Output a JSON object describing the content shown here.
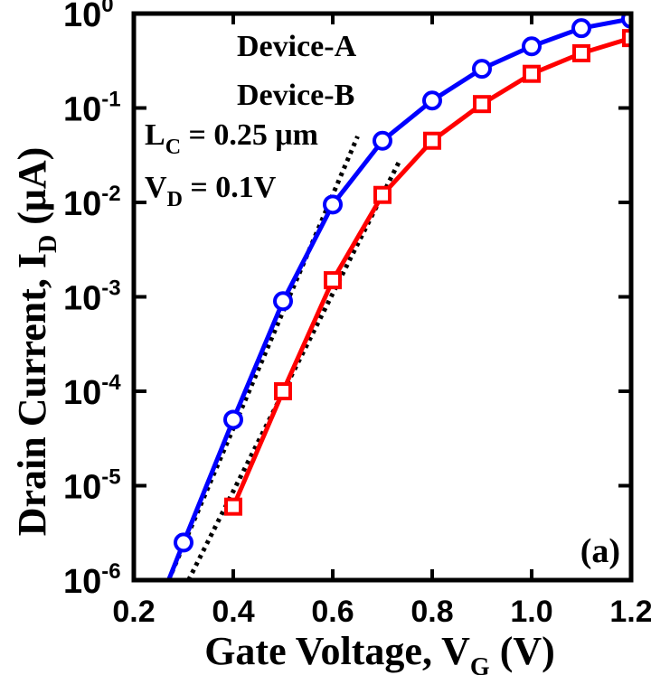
{
  "chart_data": {
    "type": "line",
    "panel_label": "(a)",
    "xlabel": {
      "main": "Gate Voltage, V",
      "sub": "G",
      "unit": " (V)"
    },
    "ylabel": {
      "main": "Drain Current, I",
      "sub": "D",
      "unit": " (μA)"
    },
    "xlim": [
      0.2,
      1.2
    ],
    "ylim": [
      1e-06,
      1
    ],
    "yscale": "log",
    "x_ticks": [
      "0.2",
      "0.4",
      "0.6",
      "0.8",
      "1.0",
      "1.2"
    ],
    "y_ticks": [
      {
        "base": "10",
        "exp": "-6"
      },
      {
        "base": "10",
        "exp": "-5"
      },
      {
        "base": "10",
        "exp": "-4"
      },
      {
        "base": "10",
        "exp": "-3"
      },
      {
        "base": "10",
        "exp": "-2"
      },
      {
        "base": "10",
        "exp": "-1"
      },
      {
        "base": "10",
        "exp": "0"
      }
    ],
    "annotations": {
      "length": {
        "main": "L",
        "sub": "C",
        "rest": " = 0.25 μm"
      },
      "drain_voltage": {
        "main": "V",
        "sub": "D",
        "rest": " = 0.1V"
      }
    },
    "series": [
      {
        "name": "Device-A",
        "color": "#0000ff",
        "marker": "circle",
        "x": [
          0.3,
          0.4,
          0.5,
          0.6,
          0.7,
          0.8,
          0.9,
          1.0,
          1.1,
          1.2
        ],
        "y": [
          2.5e-06,
          5e-05,
          0.0009,
          0.0095,
          0.045,
          0.12,
          0.26,
          0.45,
          0.7,
          0.88
        ],
        "line_start": {
          "x": 0.27,
          "y": 1e-06
        }
      },
      {
        "name": "Device-B",
        "color": "#ff0000",
        "marker": "square",
        "x": [
          0.4,
          0.5,
          0.6,
          0.7,
          0.8,
          0.9,
          1.0,
          1.1,
          1.2
        ],
        "y": [
          6e-06,
          0.0001,
          0.0015,
          0.012,
          0.045,
          0.11,
          0.23,
          0.38,
          0.55
        ]
      }
    ],
    "fit_lines": [
      {
        "series": "Device-A",
        "x": [
          0.27,
          0.65
        ],
        "y": [
          1e-06,
          0.05
        ]
      },
      {
        "series": "Device-B",
        "x": [
          0.31,
          0.735
        ],
        "y": [
          1e-06,
          0.028
        ]
      }
    ]
  }
}
